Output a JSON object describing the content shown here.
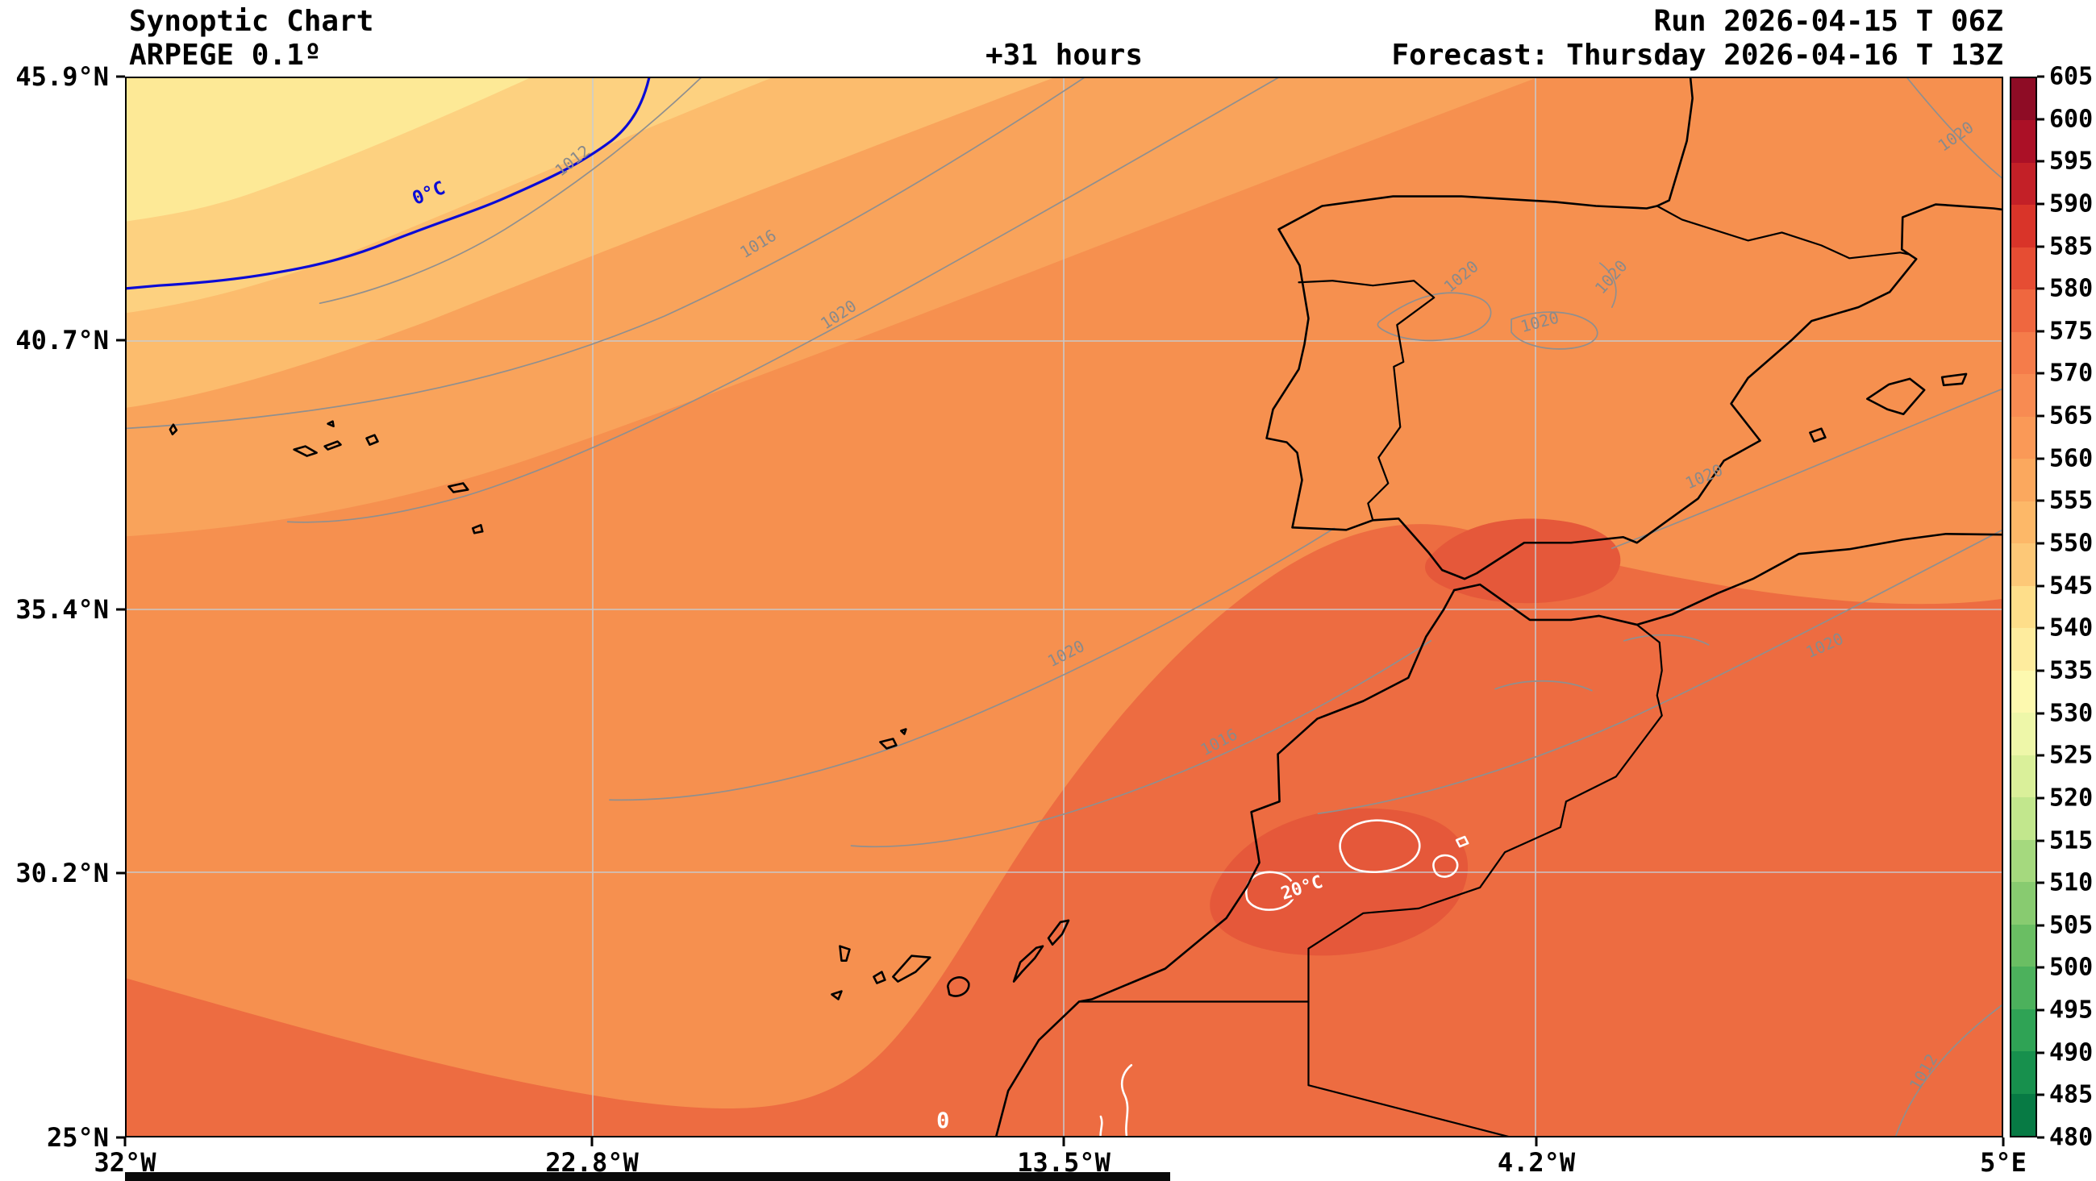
{
  "header": {
    "title": "Synoptic Chart",
    "subtitle": "ARPEGE 0.1º",
    "lead_time": "+31 hours",
    "run": "Run 2026-04-15 T 06Z",
    "forecast": "Forecast: Thursday 2026-04-16 T 13Z"
  },
  "axes": {
    "y_ticks": [
      "45.9°N",
      "40.7°N",
      "35.4°N",
      "30.2°N",
      "25°N"
    ],
    "x_ticks": [
      "32°W",
      "22.8°W",
      "13.5°W",
      "4.2°W",
      "5°E"
    ]
  },
  "colorbar": {
    "ticks": [
      "605",
      "600",
      "595",
      "590",
      "585",
      "580",
      "575",
      "570",
      "565",
      "560",
      "555",
      "550",
      "545",
      "540",
      "535",
      "530",
      "525",
      "520",
      "515",
      "510",
      "505",
      "500",
      "495",
      "490",
      "485",
      "480"
    ],
    "colors_top_to_bottom": [
      "#8e0c25",
      "#ab1026",
      "#c32027",
      "#d93429",
      "#e64d33",
      "#ef673f",
      "#f57c4a",
      "#f88b52",
      "#fa9957",
      "#fba85e",
      "#fdb868",
      "#fdc877",
      "#fede8a",
      "#feec9e",
      "#fdf9af",
      "#eef7a9",
      "#daf09a",
      "#c2e78d",
      "#a5d97e",
      "#88cb70",
      "#6abe63",
      "#4cb15c",
      "#2fa355",
      "#17904d",
      "#077a44"
    ]
  },
  "map_labels": {
    "isobars": {
      "i1012": "1012",
      "i1016": "1016",
      "i1020": "1020"
    },
    "temp": {
      "zero_c": "0°C",
      "twenty_c": "20°C",
      "zero": "0"
    }
  },
  "colors": {
    "field_base": "#f6904f",
    "field_dark": "#ed6c41",
    "field_darkest": "#e5583a",
    "field_light_bands": [
      "#f9a35b",
      "#fcbc6d",
      "#fdd180",
      "#fde996"
    ],
    "isobar_gray": "#8f8f8f",
    "temp_contour_blue": "#0b0bd6",
    "temp_contour_white": "#ffffff",
    "coastline_black": "#000000"
  },
  "chart_data": {
    "type": "heatmap",
    "title": "Synoptic Chart",
    "model": "ARPEGE 0.1º",
    "lead_time": "+31 hours",
    "run": "Run 2026-04-15 T 06Z",
    "forecast_valid": "Forecast: Thursday 2026-04-16 T 13Z",
    "x_axis": {
      "ticks": [
        "32°W",
        "22.8°W",
        "13.5°W",
        "4.2°W",
        "5°E"
      ],
      "range_deg_lon": [
        -32,
        5
      ]
    },
    "y_axis": {
      "ticks": [
        "45.9°N",
        "40.7°N",
        "35.4°N",
        "30.2°N",
        "25°N"
      ],
      "range_deg_lat": [
        25,
        45.9
      ]
    },
    "colorbar_levels": [
      480,
      485,
      490,
      495,
      500,
      505,
      510,
      515,
      520,
      525,
      530,
      535,
      540,
      545,
      550,
      555,
      560,
      565,
      570,
      575,
      580,
      585,
      590,
      595,
      600,
      605
    ],
    "isobar_contours_hpa": [
      1012,
      1016,
      1020
    ],
    "temperature_contours_c": [
      0,
      20
    ],
    "legend_position": "right",
    "grid": true,
    "region": "Iberian Peninsula, North-West Africa and adjacent Atlantic"
  }
}
